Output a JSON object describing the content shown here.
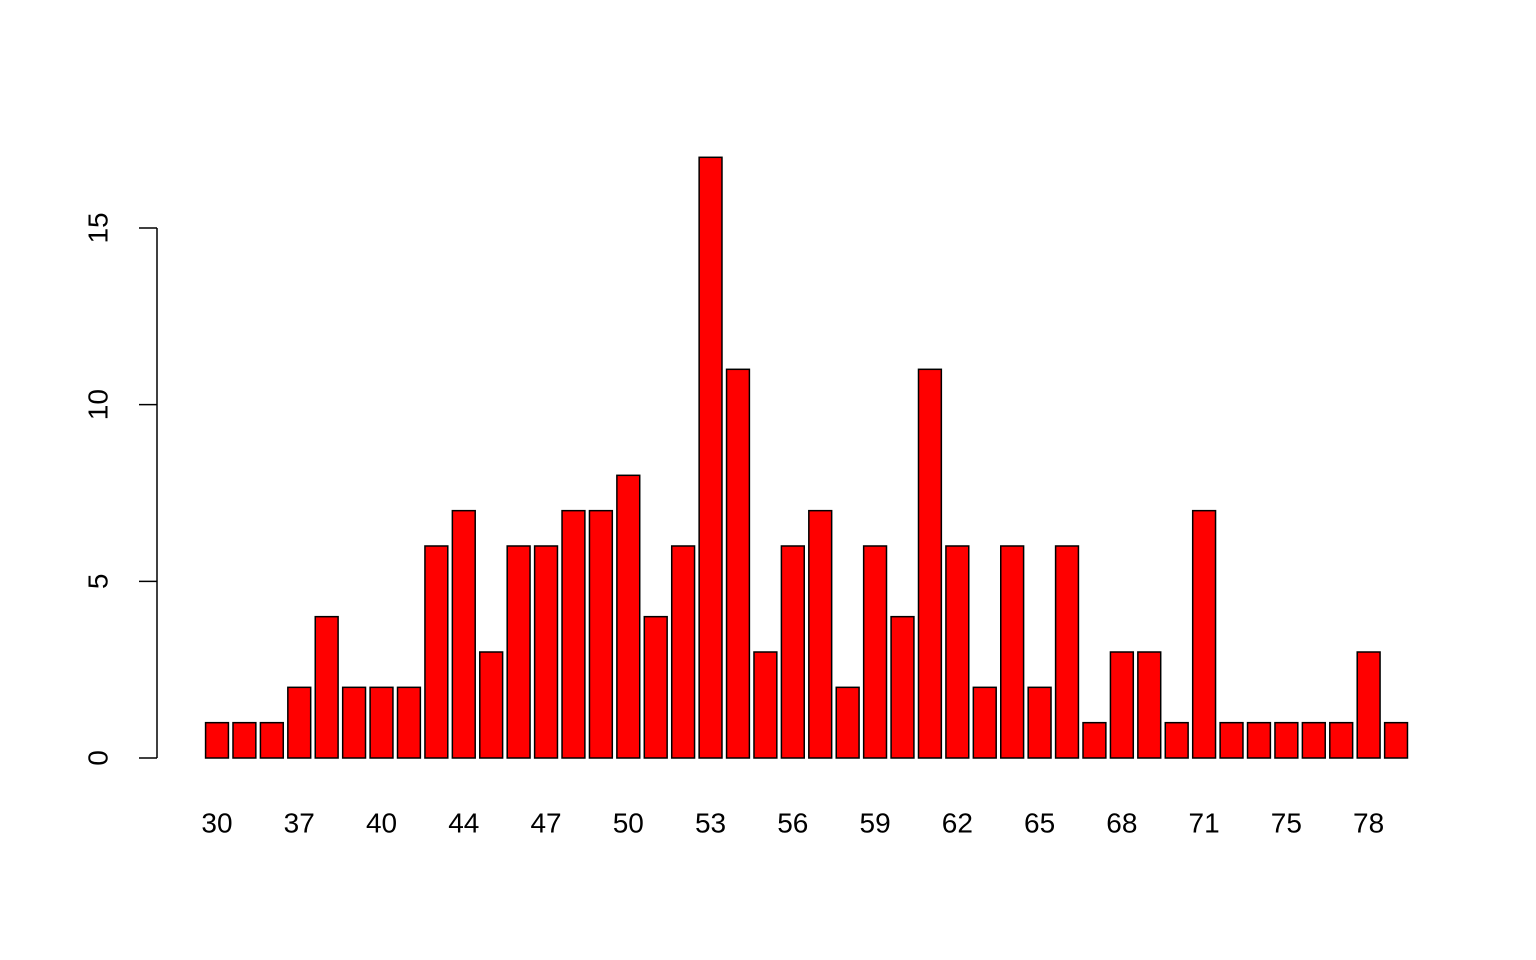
{
  "chart_data": {
    "type": "bar",
    "categories": [
      "30",
      null,
      null,
      "37",
      null,
      null,
      "40",
      null,
      null,
      "44",
      null,
      null,
      "47",
      null,
      null,
      "50",
      null,
      null,
      "53",
      null,
      null,
      "56",
      null,
      null,
      "59",
      null,
      null,
      "62",
      null,
      null,
      "65",
      null,
      null,
      "68",
      null,
      null,
      "71",
      null,
      null,
      "75",
      null,
      null,
      "78",
      null
    ],
    "values": [
      1,
      1,
      1,
      2,
      4,
      2,
      2,
      2,
      6,
      7,
      3,
      6,
      6,
      7,
      7,
      8,
      4,
      6,
      17,
      11,
      3,
      6,
      7,
      2,
      6,
      4,
      11,
      6,
      2,
      6,
      2,
      6,
      1,
      3,
      3,
      1,
      7,
      1,
      1,
      1,
      1,
      1,
      3,
      1
    ],
    "color": "#ff0000",
    "ylim": [
      0,
      17
    ],
    "yticks": [
      0,
      5,
      10,
      15
    ],
    "grid": false
  }
}
